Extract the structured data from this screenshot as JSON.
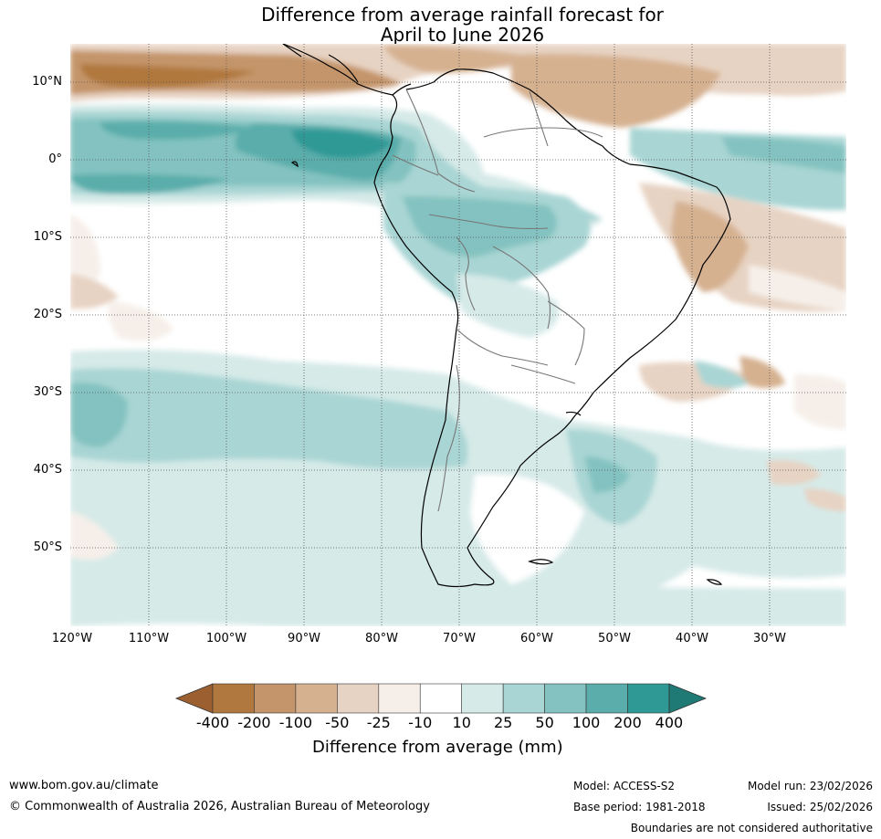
{
  "title": {
    "line1": "Difference from average rainfall forecast for",
    "line2": "April to June 2026"
  },
  "map": {
    "region": "South America",
    "lat_ticks": [
      "10°N",
      "0°",
      "10°S",
      "20°S",
      "30°S",
      "40°S",
      "50°S"
    ],
    "lon_ticks": [
      "120°W",
      "110°W",
      "100°W",
      "90°W",
      "80°W",
      "70°W",
      "60°W",
      "50°W",
      "40°W",
      "30°W"
    ]
  },
  "colorbar": {
    "labels": [
      "-400",
      "-200",
      "-100",
      "-50",
      "-25",
      "-10",
      "10",
      "25",
      "50",
      "100",
      "200",
      "400"
    ],
    "colors": [
      "#9c6030",
      "#b0783e",
      "#c4956a",
      "#d5b190",
      "#e7d3c3",
      "#f6efe9",
      "#ffffff",
      "#d6eae8",
      "#a9d5d4",
      "#83c2c0",
      "#5aadab",
      "#2f9995",
      "#1f7a76"
    ],
    "title": "Difference from average (mm)"
  },
  "footer": {
    "website": "www.bom.gov.au/climate",
    "copyright": "© Commonwealth of Australia 2026, Australian Bureau of Meteorology",
    "model": "Model: ACCESS-S2",
    "base_period": "Base period: 1981-2018",
    "model_run": "Model run: 23/02/2026",
    "issued": "Issued: 25/02/2026",
    "disclaimer": "Boundaries are not considered authoritative"
  }
}
